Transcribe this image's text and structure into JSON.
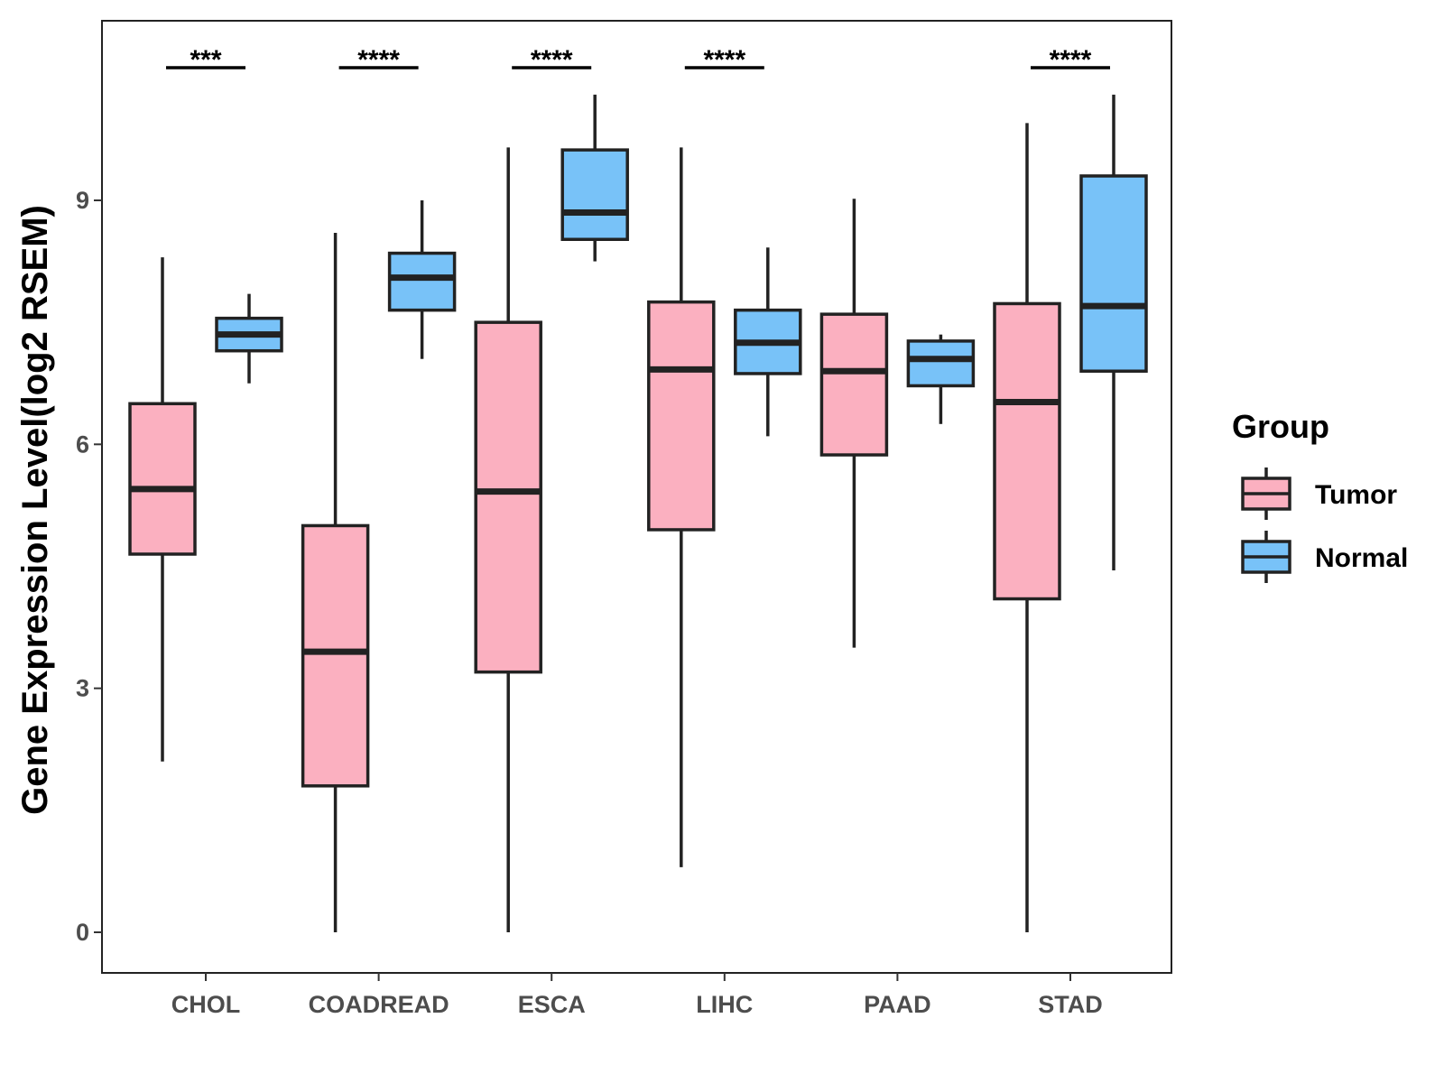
{
  "chart_data": {
    "type": "boxplot",
    "title": "",
    "xlabel": "",
    "ylabel": "Gene Expression Level(log2 RSEM)",
    "ylim": [
      -0.5,
      11.25
    ],
    "yticks": [
      0,
      3,
      6,
      9
    ],
    "grid": false,
    "categories": [
      "CHOL",
      "COADREAD",
      "ESCA",
      "LIHC",
      "PAAD",
      "STAD"
    ],
    "legend": {
      "title": "Group",
      "position": "right",
      "entries": [
        {
          "label": "Tumor",
          "color": "#fbb0c0"
        },
        {
          "label": "Normal",
          "color": "#78c2f8"
        }
      ]
    },
    "series": [
      {
        "name": "Tumor",
        "color": "#fbb0c0",
        "boxes": [
          {
            "whisker_low": 2.1,
            "q1": 4.65,
            "median": 5.45,
            "q3": 6.5,
            "whisker_high": 8.3
          },
          {
            "whisker_low": 0.0,
            "q1": 1.8,
            "median": 3.45,
            "q3": 5.0,
            "whisker_high": 8.6
          },
          {
            "whisker_low": 0.0,
            "q1": 3.2,
            "median": 5.42,
            "q3": 7.5,
            "whisker_high": 9.65
          },
          {
            "whisker_low": 0.8,
            "q1": 4.95,
            "median": 6.92,
            "q3": 7.75,
            "whisker_high": 9.65
          },
          {
            "whisker_low": 3.5,
            "q1": 5.87,
            "median": 6.9,
            "q3": 7.6,
            "whisker_high": 9.02
          },
          {
            "whisker_low": 0.0,
            "q1": 4.1,
            "median": 6.52,
            "q3": 7.73,
            "whisker_high": 9.95
          }
        ]
      },
      {
        "name": "Normal",
        "color": "#78c2f8",
        "boxes": [
          {
            "whisker_low": 6.75,
            "q1": 7.15,
            "median": 7.35,
            "q3": 7.55,
            "whisker_high": 7.85
          },
          {
            "whisker_low": 7.05,
            "q1": 7.65,
            "median": 8.05,
            "q3": 8.35,
            "whisker_high": 9.0
          },
          {
            "whisker_low": 8.25,
            "q1": 8.52,
            "median": 8.85,
            "q3": 9.62,
            "whisker_high": 10.3
          },
          {
            "whisker_low": 6.1,
            "q1": 6.87,
            "median": 7.25,
            "q3": 7.65,
            "whisker_high": 8.42
          },
          {
            "whisker_low": 6.25,
            "q1": 6.72,
            "median": 7.05,
            "q3": 7.27,
            "whisker_high": 7.35
          },
          {
            "whisker_low": 4.45,
            "q1": 6.9,
            "median": 7.7,
            "q3": 9.3,
            "whisker_high": 10.3
          }
        ]
      }
    ],
    "significance": [
      {
        "category": "CHOL",
        "label": "***"
      },
      {
        "category": "COADREAD",
        "label": "****"
      },
      {
        "category": "ESCA",
        "label": "****"
      },
      {
        "category": "LIHC",
        "label": "****"
      },
      {
        "category": "STAD",
        "label": "****"
      }
    ]
  }
}
